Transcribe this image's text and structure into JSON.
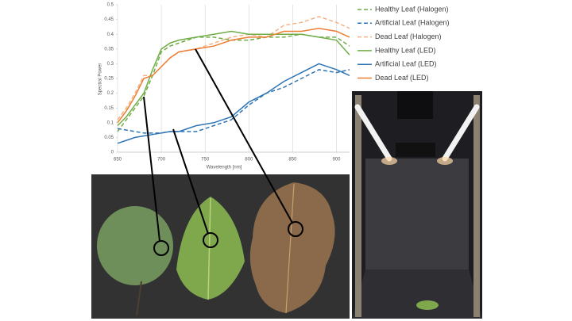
{
  "chart_data": {
    "type": "line",
    "x_label": "Wavelength [nm]",
    "y_label": "Spectral Power",
    "x": [
      650,
      660,
      670,
      680,
      690,
      700,
      710,
      720,
      740,
      760,
      780,
      800,
      820,
      840,
      860,
      880,
      900,
      915
    ],
    "xlim": [
      650,
      915
    ],
    "xticks": [
      650,
      700,
      750,
      800,
      850,
      900
    ],
    "ylim": [
      0,
      0.5
    ],
    "yticks": [
      0,
      0.05,
      0.1,
      0.15,
      0.2,
      0.25,
      0.3,
      0.35,
      0.4,
      0.45,
      0.5
    ],
    "grid": "x",
    "series": [
      {
        "name": "Healthy Leaf (Halogen)",
        "color": "#70ad47",
        "dashed": true,
        "values": [
          0.07,
          0.11,
          0.15,
          0.19,
          0.26,
          0.34,
          0.36,
          0.37,
          0.39,
          0.39,
          0.38,
          0.38,
          0.39,
          0.39,
          0.4,
          0.39,
          0.39,
          0.36
        ]
      },
      {
        "name": "Artificial Leaf (Halogen)",
        "color": "#2e75b6",
        "dashed": true,
        "values": [
          0.08,
          0.075,
          0.07,
          0.065,
          0.065,
          0.065,
          0.07,
          0.07,
          0.07,
          0.09,
          0.11,
          0.16,
          0.2,
          0.22,
          0.25,
          0.28,
          0.27,
          0.28
        ]
      },
      {
        "name": "Dead Leaf (Halogen)",
        "color": "#f4b183",
        "dashed": true,
        "values": [
          0.11,
          0.15,
          0.2,
          0.26,
          0.26,
          0.29,
          0.32,
          0.34,
          0.35,
          0.37,
          0.39,
          0.4,
          0.39,
          0.43,
          0.44,
          0.46,
          0.44,
          0.42
        ]
      },
      {
        "name": "Healthy Leaf (LED)",
        "color": "#70ad47",
        "dashed": false,
        "values": [
          0.09,
          0.12,
          0.16,
          0.2,
          0.28,
          0.35,
          0.37,
          0.38,
          0.39,
          0.4,
          0.41,
          0.4,
          0.4,
          0.4,
          0.4,
          0.39,
          0.38,
          0.33
        ]
      },
      {
        "name": "Artificial Leaf (LED)",
        "color": "#2e75b6",
        "dashed": false,
        "values": [
          0.03,
          0.04,
          0.05,
          0.055,
          0.06,
          0.065,
          0.07,
          0.07,
          0.09,
          0.1,
          0.12,
          0.17,
          0.2,
          0.24,
          0.27,
          0.3,
          0.28,
          0.26
        ]
      },
      {
        "name": "Dead Leaf (LED)",
        "color": "#ed7d31",
        "dashed": false,
        "values": [
          0.1,
          0.14,
          0.19,
          0.25,
          0.26,
          0.29,
          0.32,
          0.34,
          0.35,
          0.36,
          0.38,
          0.39,
          0.39,
          0.41,
          0.41,
          0.42,
          0.41,
          0.39
        ]
      }
    ]
  }
}
